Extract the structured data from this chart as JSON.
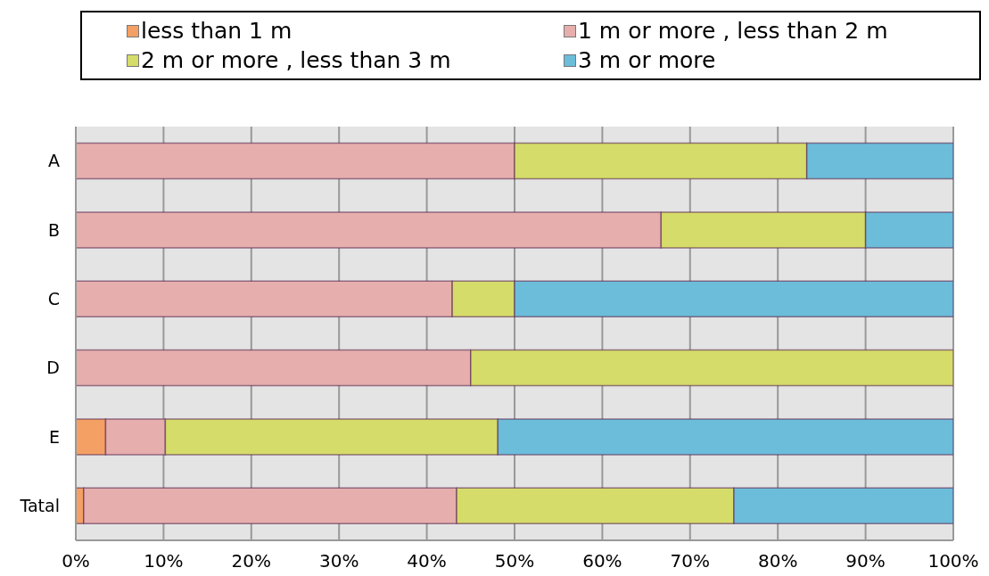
{
  "chart_data": {
    "type": "bar",
    "orientation": "horizontal",
    "stacked": true,
    "categories": [
      "A",
      "B",
      "C",
      "D",
      "E",
      "Tatal"
    ],
    "series": [
      {
        "name": "less than 1 m",
        "color": "#f4a064",
        "values": [
          0,
          0,
          0,
          0,
          3.4,
          0.9
        ]
      },
      {
        "name": "1 m or more , less than 2 m",
        "color": "#e6afad",
        "values": [
          50,
          66.7,
          42.9,
          45,
          6.8,
          42.5
        ]
      },
      {
        "name": "2 m or more , less than 3 m",
        "color": "#d5dc6a",
        "values": [
          33.3,
          23.3,
          7.1,
          55,
          37.9,
          31.6
        ]
      },
      {
        "name": "3 m or more",
        "color": "#6cbdda",
        "values": [
          16.7,
          10,
          50,
          0,
          51.9,
          25
        ]
      }
    ],
    "xlim": [
      0,
      100
    ],
    "xticks": [
      {
        "value": 0,
        "label": "0%"
      },
      {
        "value": 10,
        "label": "10%"
      },
      {
        "value": 20,
        "label": "20%"
      },
      {
        "value": 30,
        "label": "30%"
      },
      {
        "value": 40,
        "label": "40%"
      },
      {
        "value": 50,
        "label": "50%"
      },
      {
        "value": 60,
        "label": "60%"
      },
      {
        "value": 70,
        "label": "70%"
      },
      {
        "value": 80,
        "label": "80%"
      },
      {
        "value": 90,
        "label": "90%"
      },
      {
        "value": 100,
        "label": "100%"
      }
    ],
    "grid": "x",
    "legend": "top"
  }
}
